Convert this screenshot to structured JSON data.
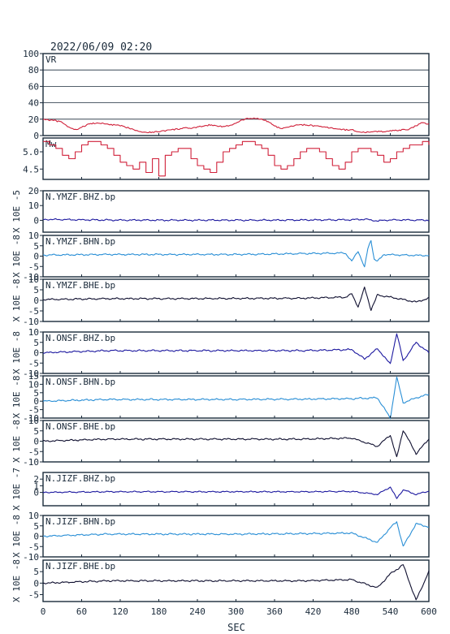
{
  "title": "2022/06/09 02:20",
  "xaxis": {
    "label": "SEC",
    "min": 0,
    "max": 600,
    "ticks": [
      0,
      60,
      120,
      180,
      240,
      300,
      360,
      420,
      480,
      540,
      600
    ]
  },
  "colors": {
    "frame": "#1a2a3a",
    "red": "#d0213a",
    "blue": "#1e1aa0",
    "cyan": "#2a8fd6",
    "black": "#101030",
    "text": "#1a2a3a"
  },
  "chart_data": [
    {
      "type": "line",
      "name": "VR",
      "label": "VR",
      "ylim": [
        0,
        100
      ],
      "yticks": [
        0,
        20,
        40,
        60,
        80,
        100
      ],
      "grid": true,
      "color": "red",
      "x": [
        0,
        10,
        20,
        30,
        40,
        50,
        60,
        70,
        80,
        90,
        100,
        110,
        120,
        130,
        140,
        150,
        160,
        170,
        180,
        190,
        200,
        210,
        220,
        230,
        240,
        250,
        260,
        270,
        280,
        290,
        300,
        310,
        320,
        330,
        340,
        350,
        360,
        370,
        380,
        390,
        400,
        410,
        420,
        430,
        440,
        450,
        460,
        470,
        480,
        490,
        500,
        510,
        520,
        530,
        540,
        550,
        560,
        570,
        580,
        590,
        600
      ],
      "y": [
        20,
        19,
        18,
        16,
        10,
        7,
        10,
        14,
        15,
        15,
        14,
        13,
        12,
        10,
        8,
        5,
        4,
        4,
        5,
        6,
        7,
        8,
        9,
        9,
        10,
        12,
        13,
        12,
        11,
        12,
        15,
        19,
        21,
        21,
        20,
        17,
        12,
        8,
        10,
        12,
        13,
        13,
        12,
        11,
        10,
        9,
        8,
        7,
        7,
        5,
        4,
        4,
        5,
        5,
        6,
        6,
        7,
        8,
        12,
        16,
        14
      ]
    },
    {
      "type": "step",
      "name": "Mw",
      "label": "Mw",
      "ylim": [
        4.2,
        5.4
      ],
      "yticks": [
        4.5,
        5.0
      ],
      "yticklabels": [
        "4.5",
        "5.0"
      ],
      "color": "red",
      "x": [
        0,
        10,
        20,
        30,
        40,
        50,
        60,
        70,
        80,
        90,
        100,
        110,
        120,
        130,
        140,
        150,
        160,
        170,
        180,
        190,
        200,
        210,
        220,
        230,
        240,
        250,
        260,
        270,
        280,
        290,
        300,
        310,
        320,
        330,
        340,
        350,
        360,
        370,
        380,
        390,
        400,
        410,
        420,
        430,
        440,
        450,
        460,
        470,
        480,
        490,
        500,
        510,
        520,
        530,
        540,
        550,
        560,
        570,
        580,
        590,
        600
      ],
      "y": [
        5.3,
        5.2,
        5.1,
        4.9,
        4.8,
        5.0,
        5.2,
        5.3,
        5.3,
        5.2,
        5.1,
        4.9,
        4.7,
        4.6,
        4.5,
        4.7,
        4.4,
        4.8,
        4.3,
        4.9,
        5.0,
        5.1,
        5.1,
        4.8,
        4.6,
        4.5,
        4.4,
        4.7,
        5.0,
        5.1,
        5.2,
        5.3,
        5.3,
        5.2,
        5.1,
        4.9,
        4.6,
        4.5,
        4.6,
        4.8,
        5.0,
        5.1,
        5.1,
        5.0,
        4.8,
        4.6,
        4.5,
        4.7,
        5.0,
        5.1,
        5.1,
        5.0,
        4.9,
        4.7,
        4.8,
        5.0,
        5.1,
        5.2,
        5.2,
        5.3,
        5.2
      ]
    },
    {
      "type": "line",
      "name": "N.YMZF.BHZ.bp",
      "label": "N.YMZF.BHZ.bp",
      "yaxis_label": "X 10E -5",
      "ylim": [
        -8,
        20
      ],
      "yticks": [
        0,
        10,
        20
      ],
      "color": "blue",
      "x": [
        0,
        100,
        200,
        300,
        400,
        480,
        500,
        520,
        540,
        600
      ],
      "y": [
        0.6,
        0.2,
        0.1,
        0.1,
        0.2,
        0.4,
        0.8,
        -0.4,
        0.3,
        0.1
      ]
    },
    {
      "type": "line",
      "name": "N.YMZF.BHN.bp",
      "label": "N.YMZF.BHN.bp",
      "yaxis_label": "X 10E -8",
      "ylim": [
        -10,
        10
      ],
      "yticks": [
        -10,
        -5,
        0,
        5,
        10
      ],
      "color": "cyan",
      "x": [
        0,
        100,
        200,
        300,
        400,
        470,
        480,
        490,
        500,
        505,
        510,
        515,
        520,
        530,
        560,
        600
      ],
      "y": [
        0.5,
        0.8,
        0.8,
        0.8,
        1.2,
        1.5,
        -2.5,
        2.5,
        -5.5,
        3.5,
        7.8,
        -1.5,
        -2.5,
        0.8,
        0.5,
        0.3
      ]
    },
    {
      "type": "line",
      "name": "N.YMZF.BHE.bp",
      "label": "N.YMZF.BHE.bp",
      "yaxis_label": "X 10E -8",
      "ylim": [
        -10,
        10
      ],
      "yticks": [
        -10,
        -5,
        0,
        5,
        10
      ],
      "color": "black",
      "x": [
        0,
        100,
        200,
        300,
        400,
        470,
        480,
        490,
        500,
        510,
        520,
        540,
        580,
        600
      ],
      "y": [
        0.4,
        0.8,
        0.8,
        0.9,
        1.0,
        1.5,
        3.0,
        -3.0,
        6.0,
        -4.5,
        2.5,
        1.5,
        -0.8,
        1.0
      ]
    },
    {
      "type": "line",
      "name": "N.ONSF.BHZ.bp",
      "label": "N.ONSF.BHZ.bp",
      "yaxis_label": "X 10E -8",
      "ylim": [
        -10,
        10
      ],
      "yticks": [
        -10,
        -5,
        0,
        5,
        10
      ],
      "color": "blue",
      "x": [
        0,
        100,
        200,
        300,
        400,
        480,
        500,
        520,
        540,
        550,
        560,
        580,
        600
      ],
      "y": [
        0,
        1.0,
        1.0,
        1.0,
        1.0,
        1.5,
        -3.0,
        2.0,
        -5.5,
        9.5,
        -4.0,
        5.0,
        0.0
      ]
    },
    {
      "type": "line",
      "name": "N.ONSF.BHN.bp",
      "label": "N.ONSF.BHN.bp",
      "yaxis_label": "X 10E -8",
      "ylim": [
        -10,
        15
      ],
      "yticks": [
        -10,
        -5,
        0,
        5,
        10,
        15
      ],
      "color": "cyan",
      "x": [
        0,
        100,
        200,
        300,
        400,
        480,
        520,
        540,
        550,
        560,
        580,
        600
      ],
      "y": [
        0,
        1.0,
        1.0,
        1.0,
        1.2,
        1.5,
        2.0,
        -10.0,
        14.0,
        -1.0,
        2.0,
        4.0
      ]
    },
    {
      "type": "line",
      "name": "N.ONSF.BHE.bp",
      "label": "N.ONSF.BHE.bp",
      "yaxis_label": "X 10E -8",
      "ylim": [
        -10,
        10
      ],
      "yticks": [
        -10,
        -5,
        0,
        5,
        10
      ],
      "color": "black",
      "x": [
        0,
        100,
        200,
        300,
        400,
        480,
        520,
        540,
        550,
        560,
        580,
        600
      ],
      "y": [
        0,
        1.0,
        1.0,
        1.0,
        1.0,
        1.5,
        -2.5,
        3.0,
        -8.0,
        5.5,
        -6.0,
        1.0
      ]
    },
    {
      "type": "line",
      "name": "N.JIZF.BHZ.bp",
      "label": "N.JIZF.BHZ.bp",
      "yaxis_label": "X 10E -7",
      "ylim": [
        -2,
        3
      ],
      "yticks": [
        0,
        1,
        2
      ],
      "color": "blue",
      "x": [
        0,
        100,
        200,
        300,
        400,
        480,
        520,
        540,
        550,
        560,
        580,
        600
      ],
      "y": [
        0,
        0.1,
        0.1,
        0.1,
        0.1,
        0.15,
        -0.3,
        0.8,
        -0.9,
        0.4,
        -0.3,
        0.2
      ]
    },
    {
      "type": "line",
      "name": "N.JIZF.BHN.bp",
      "label": "N.JIZF.BHN.bp",
      "yaxis_label": "X 10E -8",
      "ylim": [
        -10,
        10
      ],
      "yticks": [
        -10,
        -5,
        0,
        5,
        10
      ],
      "color": "cyan",
      "x": [
        0,
        100,
        200,
        300,
        400,
        480,
        520,
        540,
        550,
        560,
        580,
        600
      ],
      "y": [
        0,
        1.0,
        1.0,
        1.0,
        1.2,
        1.5,
        -3.0,
        4.0,
        7.0,
        -5.0,
        6.0,
        4.5
      ]
    },
    {
      "type": "line",
      "name": "N.JIZF.BHE.bp",
      "label": "N.JIZF.BHE.bp",
      "yaxis_label": "X 10E -8",
      "ylim": [
        -8,
        10
      ],
      "yticks": [
        -5,
        0,
        5
      ],
      "color": "black",
      "x": [
        0,
        100,
        200,
        300,
        400,
        480,
        520,
        540,
        560,
        580,
        600
      ],
      "y": [
        0,
        1.0,
        1.0,
        1.0,
        1.0,
        1.5,
        -2.0,
        4.0,
        8.0,
        -7.5,
        5.0
      ]
    }
  ]
}
